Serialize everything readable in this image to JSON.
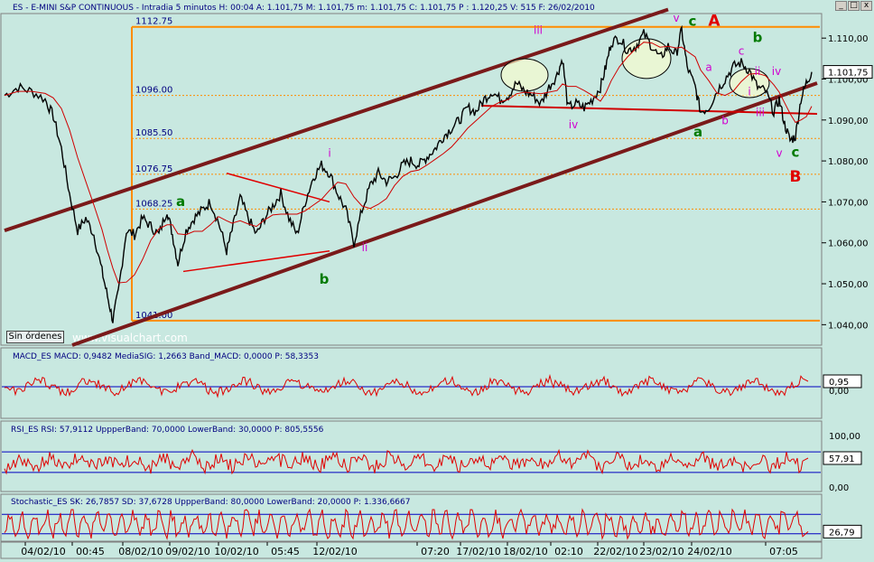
{
  "window_title": "ES - E-MINI S&P CONTINUOUS - Intradia 5 minutos  H: 00:04  A: 1.101,75  M: 1.101,75  m: 1.101,75  C: 1.101,75  P : 1.120,25  V: 515  F: 26/02/2010",
  "window_buttons": {
    "minimize": "_",
    "maximize": "□",
    "close": "x"
  },
  "sin_ordenes_label": "Sin órdenes",
  "watermark": "www.visualchart.com",
  "colors": {
    "background": "#c8e8e0",
    "price_line": "#000000",
    "moving_average": "#d00000",
    "channel": "#7a1a1a",
    "fib_line": "#ff8c00",
    "indicator_line": "#e00000",
    "band_line": "#0000c0",
    "wave_green": "#007a00",
    "wave_magenta": "#d000d0",
    "wave_red": "#e00000"
  },
  "chart_data": [
    {
      "id": "price",
      "type": "line",
      "title": "ES - E-MINI S&P CONTINUOUS - Intradia 5 minutos",
      "ylim": [
        1035,
        1116
      ],
      "y_ticks": [
        "1.040,00",
        "1.050,00",
        "1.060,00",
        "1.070,00",
        "1.080,00",
        "1.090,00",
        "1.100,00",
        "1.110,00"
      ],
      "y_tick_values": [
        1040,
        1050,
        1060,
        1070,
        1080,
        1090,
        1100,
        1110
      ],
      "last_value_label": "1.101,75",
      "last_value": 1101.75,
      "x_labels": [
        "04/02/10",
        "00:45",
        "08/02/10",
        "09/02/10",
        "10/02/10",
        "05:45",
        "12/02/10",
        "07:20",
        "17/02/10",
        "18/02/10",
        "02:10",
        "22/02/10",
        "23/02/10",
        "24/02/10",
        "07:05"
      ],
      "path_points": [
        [
          0,
          1096
        ],
        [
          5,
          1098
        ],
        [
          10,
          1097
        ],
        [
          15,
          1095
        ],
        [
          18,
          1091
        ],
        [
          21,
          1083
        ],
        [
          24,
          1072
        ],
        [
          27,
          1063
        ],
        [
          30,
          1066
        ],
        [
          33,
          1062
        ],
        [
          36,
          1053
        ],
        [
          38,
          1047
        ],
        [
          40,
          1041
        ],
        [
          42,
          1048
        ],
        [
          45,
          1063
        ],
        [
          48,
          1062
        ],
        [
          51,
          1066
        ],
        [
          54,
          1064
        ],
        [
          57,
          1062
        ],
        [
          60,
          1068
        ],
        [
          62,
          1062
        ],
        [
          64,
          1055
        ],
        [
          67,
          1063
        ],
        [
          70,
          1066
        ],
        [
          73,
          1068
        ],
        [
          76,
          1070
        ],
        [
          79,
          1065
        ],
        [
          82,
          1058
        ],
        [
          84,
          1063
        ],
        [
          87,
          1071
        ],
        [
          90,
          1066
        ],
        [
          93,
          1062
        ],
        [
          96,
          1066
        ],
        [
          99,
          1069
        ],
        [
          102,
          1072
        ],
        [
          105,
          1066
        ],
        [
          108,
          1062
        ],
        [
          111,
          1070
        ],
        [
          114,
          1076
        ],
        [
          117,
          1079
        ],
        [
          120,
          1077
        ],
        [
          123,
          1072
        ],
        [
          126,
          1068
        ],
        [
          129,
          1060
        ],
        [
          132,
          1068
        ],
        [
          135,
          1074
        ],
        [
          138,
          1077
        ],
        [
          141,
          1075
        ],
        [
          144,
          1076
        ],
        [
          147,
          1079
        ],
        [
          150,
          1080
        ],
        [
          153,
          1079
        ],
        [
          156,
          1081
        ],
        [
          159,
          1083
        ],
        [
          162,
          1086
        ],
        [
          165,
          1088
        ],
        [
          168,
          1090
        ],
        [
          171,
          1093
        ],
        [
          174,
          1092
        ],
        [
          177,
          1095
        ],
        [
          180,
          1097
        ],
        [
          183,
          1095
        ],
        [
          186,
          1096
        ],
        [
          189,
          1099
        ],
        [
          192,
          1097
        ],
        [
          195,
          1096
        ],
        [
          198,
          1094
        ],
        [
          201,
          1098
        ],
        [
          204,
          1101
        ],
        [
          206,
          1105
        ],
        [
          208,
          1093
        ],
        [
          211,
          1094
        ],
        [
          214,
          1093
        ],
        [
          217,
          1095
        ],
        [
          220,
          1098
        ],
        [
          222,
          1103
        ],
        [
          224,
          1109
        ],
        [
          227,
          1110
        ],
        [
          230,
          1107
        ],
        [
          233,
          1108
        ],
        [
          236,
          1111
        ],
        [
          239,
          1108
        ],
        [
          242,
          1105
        ],
        [
          245,
          1108
        ],
        [
          248,
          1106
        ],
        [
          250,
          1112
        ],
        [
          252,
          1103
        ],
        [
          255,
          1098
        ],
        [
          257,
          1092
        ],
        [
          260,
          1093
        ],
        [
          263,
          1097
        ],
        [
          266,
          1100
        ],
        [
          269,
          1103
        ],
        [
          272,
          1104
        ],
        [
          275,
          1102
        ],
        [
          278,
          1098
        ],
        [
          281,
          1097
        ],
        [
          284,
          1092
        ],
        [
          286,
          1095
        ],
        [
          288,
          1089
        ],
        [
          290,
          1085
        ],
        [
          292,
          1086
        ],
        [
          294,
          1095
        ],
        [
          296,
          1099
        ],
        [
          298,
          1101.75
        ]
      ]
    },
    {
      "id": "macd",
      "type": "line",
      "title": "MACD_ES  MACD: 0,9482  MediaSIG: 1,2663  Band_MACD: 0,0000  P: 58,3353",
      "last_value_label": "0,95",
      "last_value": 0.95,
      "y_tick_label": "0,00",
      "band": 0
    },
    {
      "id": "rsi",
      "type": "line",
      "title": "RSI_ES  RSI: 57,9112  UppperBand: 70,0000  LowerBand: 30,0000  P: 805,5556",
      "last_value_label": "57,91",
      "last_value": 57.91,
      "ylim": [
        0,
        100
      ],
      "y_tick_labels": [
        "100,00",
        "0,00"
      ],
      "upper_band": 70,
      "lower_band": 30
    },
    {
      "id": "stochastic",
      "type": "line",
      "title": "Stochastic_ES  SK: 26,7857  SD: 37,6728  UppperBand: 80,0000  LowerBand: 20,0000  P: 1.336,6667",
      "last_value_label": "26,79",
      "last_value": 26.79,
      "upper_band": 80,
      "lower_band": 20
    }
  ],
  "fib_levels": [
    {
      "label": "1112.75",
      "value": 1112.75,
      "style": "solid"
    },
    {
      "label": "1096.00",
      "value": 1096.0,
      "style": "dotted"
    },
    {
      "label": "1085.50",
      "value": 1085.5,
      "style": "dotted"
    },
    {
      "label": "1076.75",
      "value": 1076.75,
      "style": "dotted"
    },
    {
      "label": "1068.25",
      "value": 1068.25,
      "style": "dotted"
    },
    {
      "label": "1041.00",
      "value": 1041.0,
      "style": "solid"
    }
  ],
  "wave_labels": [
    {
      "text": "a",
      "color": "green",
      "x": 65,
      "y": 1069
    },
    {
      "text": "b",
      "color": "green",
      "x": 118,
      "y": 1050
    },
    {
      "text": "i",
      "color": "magenta",
      "x": 120,
      "y": 1081
    },
    {
      "text": "ii",
      "color": "magenta",
      "x": 133,
      "y": 1058
    },
    {
      "text": "iii",
      "color": "magenta",
      "x": 197,
      "y": 1111
    },
    {
      "text": "iv",
      "color": "magenta",
      "x": 210,
      "y": 1088
    },
    {
      "text": "v",
      "color": "magenta",
      "x": 248,
      "y": 1114
    },
    {
      "text": "c",
      "color": "green",
      "x": 254,
      "y": 1113
    },
    {
      "text": "A",
      "color": "red",
      "x": 262,
      "y": 1113
    },
    {
      "text": "a",
      "color": "magenta",
      "x": 260,
      "y": 1102
    },
    {
      "text": "a",
      "color": "green",
      "x": 256,
      "y": 1086
    },
    {
      "text": "b",
      "color": "magenta",
      "x": 266,
      "y": 1089
    },
    {
      "text": "c",
      "color": "magenta",
      "x": 272,
      "y": 1106
    },
    {
      "text": "b",
      "color": "green",
      "x": 278,
      "y": 1109
    },
    {
      "text": "ii",
      "color": "magenta",
      "x": 278,
      "y": 1101
    },
    {
      "text": "i",
      "color": "magenta",
      "x": 275,
      "y": 1096
    },
    {
      "text": "iii",
      "color": "magenta",
      "x": 279,
      "y": 1091
    },
    {
      "text": "iv",
      "color": "magenta",
      "x": 285,
      "y": 1101
    },
    {
      "text": "v",
      "color": "magenta",
      "x": 286,
      "y": 1081
    },
    {
      "text": "c",
      "color": "green",
      "x": 292,
      "y": 1081
    },
    {
      "text": "B",
      "color": "red",
      "x": 292,
      "y": 1075
    }
  ]
}
